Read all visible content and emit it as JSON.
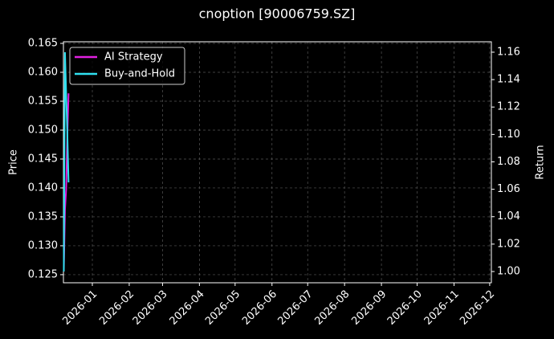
{
  "chart_data": {
    "type": "line",
    "title": "cnoption [90006759.SZ]",
    "ylabel": "Price",
    "y2label": "Return",
    "x": [
      -24,
      -23,
      -22,
      -21,
      -20
    ],
    "series": [
      {
        "name": "AI Strategy",
        "color": "#e020e0",
        "axis": "y2",
        "values": [
          1.0,
          1.045,
          1.06,
          1.1,
          1.13
        ]
      },
      {
        "name": "Buy-and-Hold",
        "color": "#30e0f0",
        "axis": "y2",
        "values": [
          1.0,
          1.16,
          1.13,
          1.1,
          1.065
        ]
      }
    ],
    "xlim": [
      -24.3,
      335.4
    ],
    "xticks": [
      {
        "value": 0,
        "label": "2026-01"
      },
      {
        "value": 31,
        "label": "2026-02"
      },
      {
        "value": 59,
        "label": "2026-03"
      },
      {
        "value": 90,
        "label": "2026-04"
      },
      {
        "value": 120,
        "label": "2026-05"
      },
      {
        "value": 151,
        "label": "2026-06"
      },
      {
        "value": 181,
        "label": "2026-07"
      },
      {
        "value": 212,
        "label": "2026-08"
      },
      {
        "value": 243,
        "label": "2026-09"
      },
      {
        "value": 273,
        "label": "2026-10"
      },
      {
        "value": 304,
        "label": "2026-11"
      },
      {
        "value": 334,
        "label": "2026-12"
      }
    ],
    "ylim": [
      0.1236,
      0.16528
    ],
    "yticks": [
      {
        "value": 0.125,
        "label": "0.125"
      },
      {
        "value": 0.13,
        "label": "0.130"
      },
      {
        "value": 0.135,
        "label": "0.135"
      },
      {
        "value": 0.14,
        "label": "0.140"
      },
      {
        "value": 0.145,
        "label": "0.145"
      },
      {
        "value": 0.15,
        "label": "0.150"
      },
      {
        "value": 0.155,
        "label": "0.155"
      },
      {
        "value": 0.16,
        "label": "0.160"
      },
      {
        "value": 0.165,
        "label": "0.165"
      }
    ],
    "y2lim": [
      0.9918,
      1.1676
    ],
    "y2ticks": [
      {
        "value": 1.0,
        "label": "1.00"
      },
      {
        "value": 1.02,
        "label": "1.02"
      },
      {
        "value": 1.04,
        "label": "1.04"
      },
      {
        "value": 1.06,
        "label": "1.06"
      },
      {
        "value": 1.08,
        "label": "1.08"
      },
      {
        "value": 1.1,
        "label": "1.10"
      },
      {
        "value": 1.12,
        "label": "1.12"
      },
      {
        "value": 1.14,
        "label": "1.14"
      },
      {
        "value": 1.16,
        "label": "1.16"
      }
    ],
    "grid": true,
    "legend": "upper left"
  }
}
